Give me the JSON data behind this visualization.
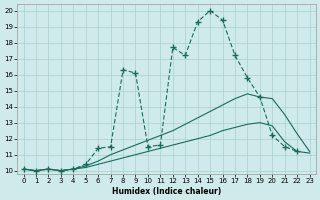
{
  "xlabel": "Humidex (Indice chaleur)",
  "bg_color": "#ceeaea",
  "line_color": "#1a6b5a",
  "grid_color": "#aacfcf",
  "xlim": [
    -0.5,
    23.5
  ],
  "ylim": [
    9.8,
    20.4
  ],
  "xticks": [
    0,
    1,
    2,
    3,
    4,
    5,
    6,
    7,
    8,
    9,
    10,
    11,
    12,
    13,
    14,
    15,
    16,
    17,
    18,
    19,
    20,
    21,
    22,
    23
  ],
  "yticks": [
    10,
    11,
    12,
    13,
    14,
    15,
    16,
    17,
    18,
    19,
    20
  ],
  "main_x": [
    0,
    1,
    2,
    3,
    4,
    5,
    6,
    7,
    8,
    9,
    10,
    11,
    12,
    13,
    14,
    15,
    16,
    17,
    18,
    19,
    20,
    21,
    22
  ],
  "main_y": [
    10.1,
    10.0,
    10.1,
    10.0,
    10.1,
    10.4,
    11.4,
    11.5,
    16.3,
    16.1,
    11.5,
    11.6,
    17.7,
    17.2,
    19.3,
    20.0,
    19.4,
    17.2,
    15.8,
    14.6,
    12.2,
    11.5,
    11.2
  ],
  "line2_x": [
    0,
    1,
    2,
    3,
    4,
    5,
    6,
    7,
    8,
    9,
    10,
    11,
    12,
    13,
    14,
    15,
    16,
    17,
    18,
    19,
    20,
    21,
    22,
    23
  ],
  "line2_y": [
    10.1,
    10.0,
    10.1,
    10.0,
    10.1,
    10.3,
    10.6,
    11.0,
    11.3,
    11.6,
    11.9,
    12.2,
    12.5,
    12.9,
    13.3,
    13.7,
    14.1,
    14.5,
    14.8,
    14.6,
    14.5,
    13.5,
    12.3,
    11.2
  ],
  "line3_x": [
    0,
    1,
    2,
    3,
    4,
    5,
    6,
    7,
    8,
    9,
    10,
    11,
    12,
    13,
    14,
    15,
    16,
    17,
    18,
    19,
    20,
    21,
    22,
    23
  ],
  "line3_y": [
    10.1,
    10.0,
    10.1,
    10.0,
    10.1,
    10.2,
    10.4,
    10.6,
    10.8,
    11.0,
    11.2,
    11.4,
    11.6,
    11.8,
    12.0,
    12.2,
    12.5,
    12.7,
    12.9,
    13.0,
    12.8,
    11.8,
    11.2,
    11.1
  ]
}
